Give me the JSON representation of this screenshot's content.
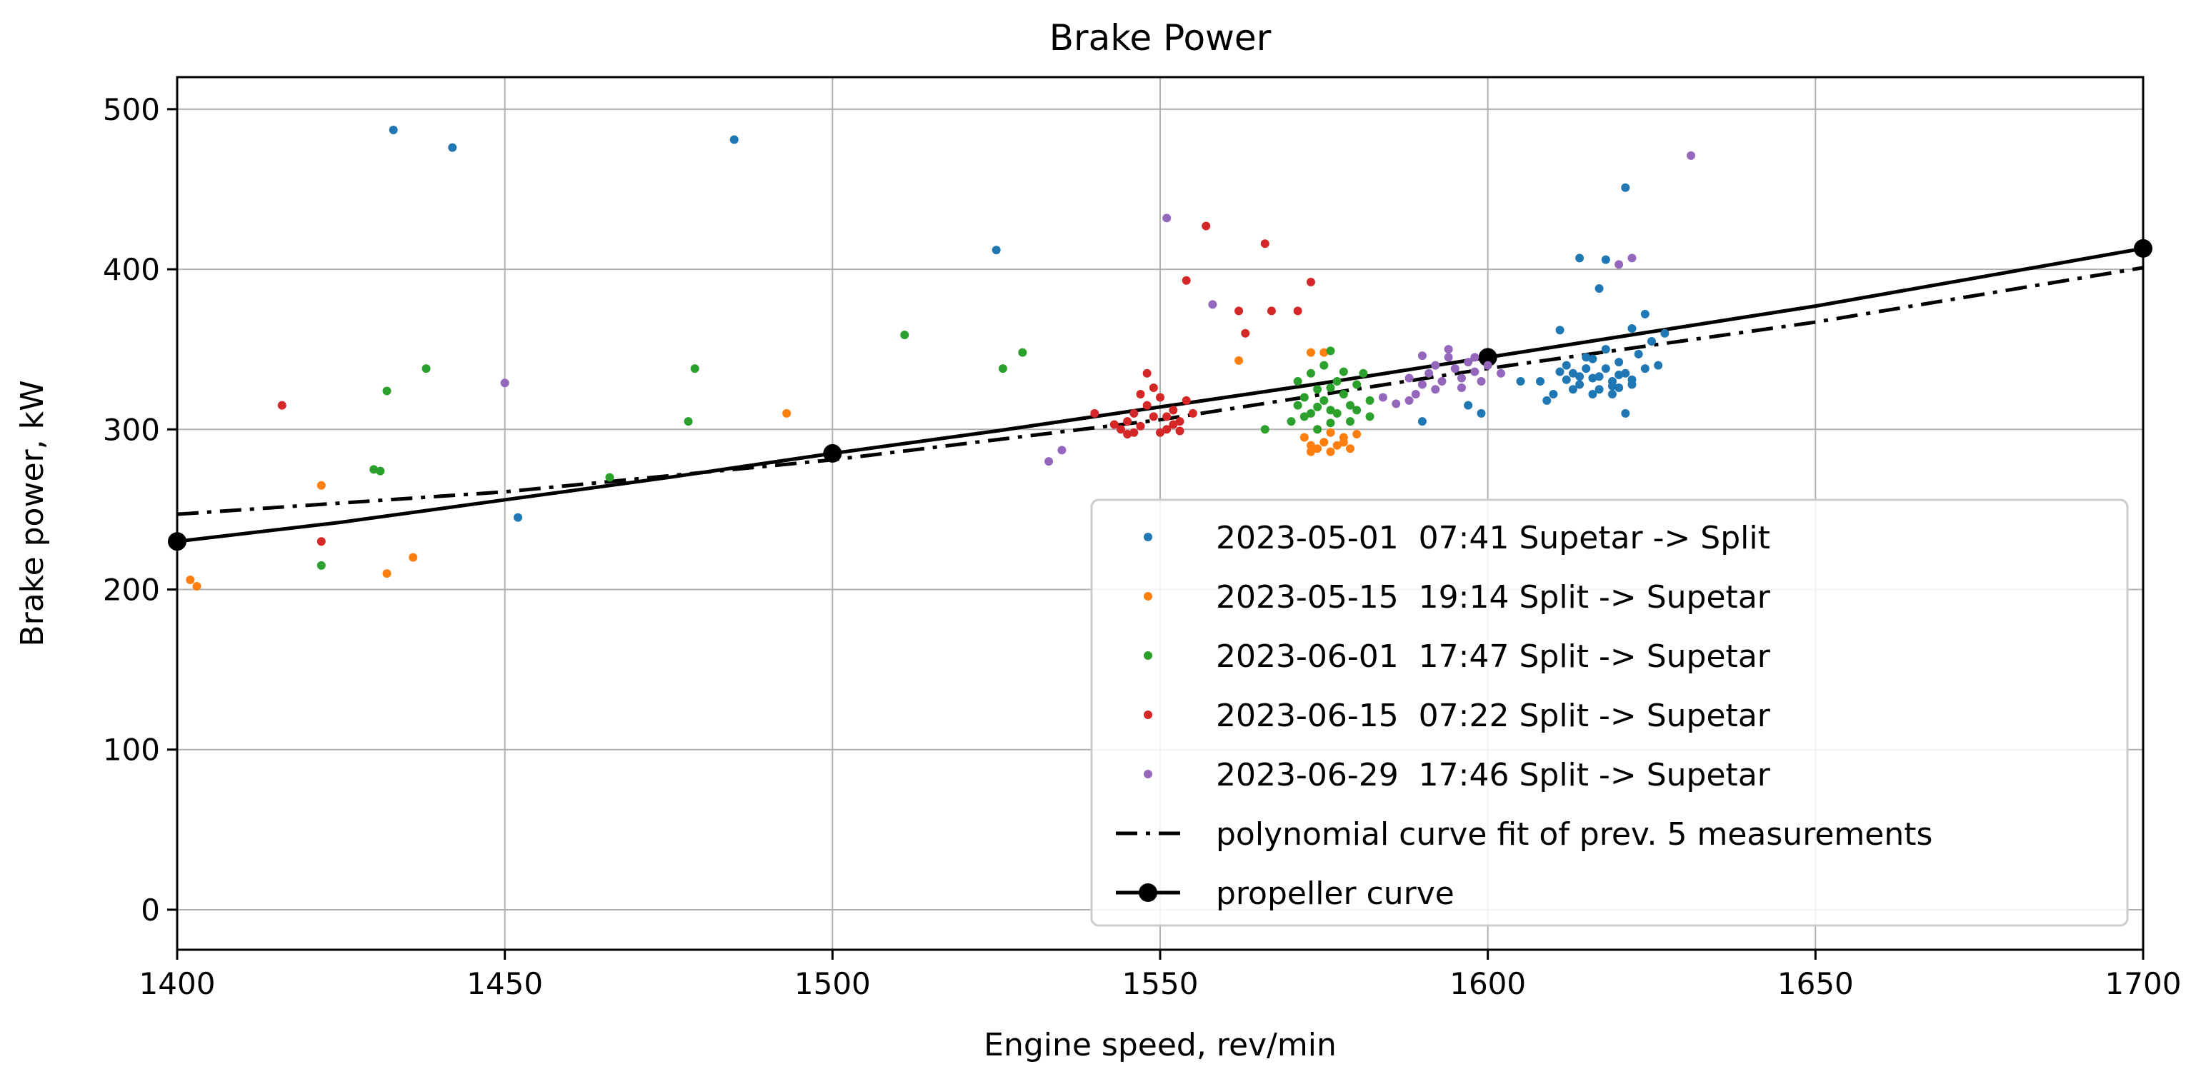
{
  "chart_data": {
    "type": "scatter",
    "title": "Brake Power",
    "xlabel": "Engine speed, rev/min",
    "ylabel": "Brake power, kW",
    "xlim": [
      1400,
      1700
    ],
    "ylim": [
      -25,
      520
    ],
    "xticks": [
      1400,
      1450,
      1500,
      1550,
      1600,
      1650,
      1700
    ],
    "yticks": [
      0,
      100,
      200,
      300,
      400,
      500
    ],
    "grid": true,
    "legend_position": "bottom-right",
    "series": [
      {
        "name": "2023-05-01  07:41 Supetar -> Split",
        "color": "#1f77b4",
        "points": [
          [
            1433,
            487
          ],
          [
            1442,
            476
          ],
          [
            1485,
            481
          ],
          [
            1525,
            412
          ],
          [
            1452,
            245
          ],
          [
            1614,
            407
          ],
          [
            1618,
            406
          ],
          [
            1621,
            451
          ],
          [
            1617,
            388
          ],
          [
            1622,
            363
          ],
          [
            1608,
            330
          ],
          [
            1610,
            322
          ],
          [
            1612,
            340
          ],
          [
            1613,
            335
          ],
          [
            1614,
            328
          ],
          [
            1615,
            345
          ],
          [
            1616,
            332
          ],
          [
            1617,
            325
          ],
          [
            1618,
            338
          ],
          [
            1619,
            330
          ],
          [
            1620,
            342
          ],
          [
            1620,
            326
          ],
          [
            1621,
            335
          ],
          [
            1622,
            331
          ],
          [
            1623,
            347
          ],
          [
            1624,
            372
          ],
          [
            1625,
            355
          ],
          [
            1626,
            340
          ],
          [
            1627,
            360
          ],
          [
            1611,
            336
          ],
          [
            1613,
            325
          ],
          [
            1615,
            338
          ],
          [
            1616,
            344
          ],
          [
            1619,
            322
          ],
          [
            1621,
            310
          ],
          [
            1611,
            362
          ],
          [
            1609,
            318
          ],
          [
            1590,
            305
          ],
          [
            1597,
            315
          ],
          [
            1599,
            310
          ],
          [
            1618,
            350
          ],
          [
            1619,
            327
          ],
          [
            1617,
            333
          ],
          [
            1614,
            333
          ],
          [
            1612,
            331
          ],
          [
            1616,
            322
          ],
          [
            1620,
            334
          ],
          [
            1622,
            328
          ],
          [
            1624,
            338
          ],
          [
            1605,
            330
          ]
        ]
      },
      {
        "name": "2023-05-15  19:14 Split -> Supetar",
        "color": "#ff7f0e",
        "points": [
          [
            1402,
            206
          ],
          [
            1403,
            202
          ],
          [
            1422,
            265
          ],
          [
            1432,
            210
          ],
          [
            1436,
            220
          ],
          [
            1493,
            310
          ],
          [
            1562,
            343
          ],
          [
            1573,
            348
          ],
          [
            1575,
            348
          ],
          [
            1572,
            295
          ],
          [
            1573,
            290
          ],
          [
            1574,
            288
          ],
          [
            1575,
            292
          ],
          [
            1576,
            286
          ],
          [
            1577,
            290
          ],
          [
            1578,
            295
          ],
          [
            1579,
            288
          ],
          [
            1580,
            297
          ],
          [
            1574,
            300
          ],
          [
            1576,
            298
          ],
          [
            1578,
            292
          ],
          [
            1573,
            286
          ]
        ]
      },
      {
        "name": "2023-06-01  17:47 Split -> Supetar",
        "color": "#2ca02c",
        "points": [
          [
            1422,
            215
          ],
          [
            1430,
            275
          ],
          [
            1431,
            274
          ],
          [
            1432,
            324
          ],
          [
            1438,
            338
          ],
          [
            1466,
            270
          ],
          [
            1478,
            305
          ],
          [
            1479,
            338
          ],
          [
            1511,
            359
          ],
          [
            1526,
            338
          ],
          [
            1529,
            348
          ],
          [
            1576,
            349
          ],
          [
            1566,
            300
          ],
          [
            1570,
            305
          ],
          [
            1571,
            315
          ],
          [
            1572,
            320
          ],
          [
            1573,
            310
          ],
          [
            1574,
            325
          ],
          [
            1575,
            318
          ],
          [
            1576,
            312
          ],
          [
            1577,
            330
          ],
          [
            1578,
            322
          ],
          [
            1579,
            315
          ],
          [
            1580,
            328
          ],
          [
            1581,
            335
          ],
          [
            1582,
            318
          ],
          [
            1571,
            330
          ],
          [
            1573,
            335
          ],
          [
            1575,
            340
          ],
          [
            1577,
            310
          ],
          [
            1579,
            305
          ],
          [
            1572,
            308
          ],
          [
            1574,
            300
          ],
          [
            1576,
            304
          ],
          [
            1578,
            336
          ],
          [
            1580,
            312
          ],
          [
            1582,
            308
          ],
          [
            1574,
            314
          ],
          [
            1576,
            326
          ]
        ]
      },
      {
        "name": "2023-06-15  07:22 Split -> Supetar",
        "color": "#d62728",
        "points": [
          [
            1416,
            315
          ],
          [
            1422,
            230
          ],
          [
            1557,
            427
          ],
          [
            1566,
            416
          ],
          [
            1554,
            393
          ],
          [
            1562,
            374
          ],
          [
            1567,
            374
          ],
          [
            1571,
            374
          ],
          [
            1573,
            392
          ],
          [
            1563,
            360
          ],
          [
            1544,
            300
          ],
          [
            1545,
            305
          ],
          [
            1546,
            310
          ],
          [
            1547,
            302
          ],
          [
            1548,
            315
          ],
          [
            1549,
            308
          ],
          [
            1550,
            320
          ],
          [
            1551,
            300
          ],
          [
            1552,
            312
          ],
          [
            1553,
            305
          ],
          [
            1554,
            318
          ],
          [
            1548,
            335
          ],
          [
            1549,
            326
          ],
          [
            1547,
            322
          ],
          [
            1546,
            298
          ],
          [
            1550,
            298
          ],
          [
            1551,
            308
          ],
          [
            1552,
            303
          ],
          [
            1553,
            299
          ],
          [
            1555,
            310
          ],
          [
            1545,
            297
          ],
          [
            1543,
            303
          ],
          [
            1540,
            310
          ]
        ]
      },
      {
        "name": "2023-06-29  17:46 Split -> Supetar",
        "color": "#9467bd",
        "points": [
          [
            1450,
            329
          ],
          [
            1533,
            280
          ],
          [
            1535,
            287
          ],
          [
            1551,
            432
          ],
          [
            1558,
            378
          ],
          [
            1622,
            407
          ],
          [
            1631,
            471
          ],
          [
            1620,
            403
          ],
          [
            1586,
            316
          ],
          [
            1588,
            318
          ],
          [
            1589,
            322
          ],
          [
            1590,
            328
          ],
          [
            1591,
            335
          ],
          [
            1592,
            340
          ],
          [
            1593,
            330
          ],
          [
            1594,
            345
          ],
          [
            1595,
            338
          ],
          [
            1596,
            332
          ],
          [
            1597,
            342
          ],
          [
            1598,
            336
          ],
          [
            1599,
            330
          ],
          [
            1600,
            340
          ],
          [
            1590,
            346
          ],
          [
            1592,
            325
          ],
          [
            1594,
            350
          ],
          [
            1596,
            326
          ],
          [
            1598,
            345
          ],
          [
            1588,
            332
          ],
          [
            1602,
            335
          ],
          [
            1584,
            320
          ]
        ]
      }
    ],
    "lines": [
      {
        "name": "polynomial curve fit of prev. 5 measurements",
        "color": "#000000",
        "style": "dashdot",
        "points": [
          [
            1400,
            247
          ],
          [
            1450,
            261
          ],
          [
            1500,
            281
          ],
          [
            1550,
            306
          ],
          [
            1600,
            338
          ],
          [
            1650,
            367
          ],
          [
            1700,
            401
          ]
        ]
      },
      {
        "name": "propeller curve",
        "color": "#000000",
        "style": "solid",
        "markers": [
          [
            1400,
            230
          ],
          [
            1500,
            285
          ],
          [
            1600,
            345
          ],
          [
            1700,
            413
          ]
        ],
        "points": [
          [
            1400,
            230
          ],
          [
            1425,
            242
          ],
          [
            1450,
            256
          ],
          [
            1475,
            270
          ],
          [
            1500,
            285
          ],
          [
            1525,
            299
          ],
          [
            1550,
            314
          ],
          [
            1575,
            329
          ],
          [
            1600,
            345
          ],
          [
            1625,
            361
          ],
          [
            1650,
            377
          ],
          [
            1675,
            395
          ],
          [
            1700,
            413
          ]
        ]
      }
    ]
  }
}
